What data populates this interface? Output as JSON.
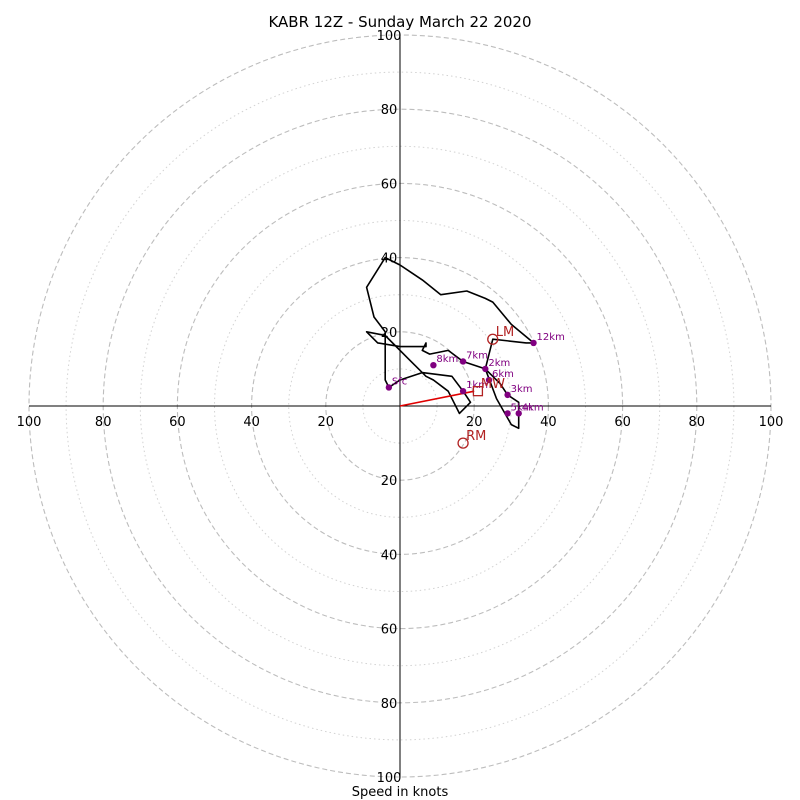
{
  "chart_data": {
    "type": "hodograph",
    "title": "KABR 12Z - Sunday March 22 2020",
    "xlabel": "Speed in knots",
    "ring_labels": [
      "20",
      "40",
      "60",
      "80",
      "100"
    ],
    "x_tick_labels": [
      "100",
      "80",
      "60",
      "40",
      "20",
      "20",
      "40",
      "60",
      "80",
      "100"
    ],
    "y_tick_labels": [
      "100",
      "80",
      "60",
      "40",
      "20",
      "20",
      "40",
      "60",
      "80",
      "100"
    ],
    "range_kt": 100,
    "major_ring_step_kt": 20,
    "minor_ring_step_kt": 10,
    "colors": {
      "trace": "#000000",
      "height_points": "#800080",
      "storm_motion": "#b22222",
      "shear_vector": "#e00000",
      "rings": "#bdbdbd"
    },
    "hodograph_trace": [
      {
        "u": -3,
        "v": 5
      },
      {
        "u": 0,
        "v": 7
      },
      {
        "u": 6,
        "v": 9
      },
      {
        "u": 14,
        "v": 8
      },
      {
        "u": 17,
        "v": 4
      },
      {
        "u": 19,
        "v": 1
      },
      {
        "u": 16,
        "v": -2
      },
      {
        "u": 13,
        "v": 4
      },
      {
        "u": 9,
        "v": 7
      },
      {
        "u": 7,
        "v": 8
      },
      {
        "u": 2,
        "v": 13
      },
      {
        "u": -4,
        "v": 19
      },
      {
        "u": -9,
        "v": 20
      },
      {
        "u": -6,
        "v": 17
      },
      {
        "u": 0,
        "v": 16
      },
      {
        "u": 7,
        "v": 16
      },
      {
        "u": 7,
        "v": 17
      },
      {
        "u": 6,
        "v": 15
      },
      {
        "u": 8,
        "v": 14
      },
      {
        "u": 13,
        "v": 15
      },
      {
        "u": 17,
        "v": 12
      },
      {
        "u": 23,
        "v": 10
      },
      {
        "u": 27,
        "v": 6
      },
      {
        "u": 29,
        "v": 3
      },
      {
        "u": 32,
        "v": 1
      },
      {
        "u": 32,
        "v": -6
      },
      {
        "u": 30,
        "v": -5
      },
      {
        "u": 26,
        "v": 2
      },
      {
        "u": 23,
        "v": 10
      },
      {
        "u": 25,
        "v": 18
      },
      {
        "u": 34,
        "v": 17
      },
      {
        "u": 36,
        "v": 17
      },
      {
        "u": 30,
        "v": 22
      },
      {
        "u": 25,
        "v": 28
      },
      {
        "u": 23,
        "v": 29
      },
      {
        "u": 18,
        "v": 31
      },
      {
        "u": 11,
        "v": 30
      },
      {
        "u": 6,
        "v": 34
      },
      {
        "u": 3,
        "v": 36
      },
      {
        "u": 0,
        "v": 38
      },
      {
        "u": -4,
        "v": 40
      },
      {
        "u": -9,
        "v": 32
      },
      {
        "u": -7,
        "v": 24
      },
      {
        "u": -4,
        "v": 20
      },
      {
        "u": -4,
        "v": 11
      },
      {
        "u": -4,
        "v": 7
      },
      {
        "u": -3,
        "v": 5
      }
    ],
    "height_points": [
      {
        "label": "Sfc",
        "u": -3,
        "v": 5
      },
      {
        "label": "1km",
        "u": 17,
        "v": 4
      },
      {
        "label": "2km",
        "u": 23,
        "v": 10
      },
      {
        "label": "3km",
        "u": 29,
        "v": 3
      },
      {
        "label": "4km",
        "u": 32,
        "v": -2
      },
      {
        "label": "5km",
        "u": 29,
        "v": -2
      },
      {
        "label": "6km",
        "u": 24,
        "v": 7
      },
      {
        "label": "7km",
        "u": 17,
        "v": 12
      },
      {
        "label": "8km",
        "u": 9,
        "v": 11
      },
      {
        "label": "12km",
        "u": 36,
        "v": 17
      }
    ],
    "storm_motions": [
      {
        "label": "LM",
        "marker": "circle",
        "u": 25,
        "v": 18
      },
      {
        "label": "RM",
        "marker": "circle",
        "u": 17,
        "v": -10
      },
      {
        "label": "MW",
        "marker": "square",
        "u": 21,
        "v": 4
      }
    ],
    "shear_vector": {
      "u": 20,
      "v": 4
    }
  }
}
